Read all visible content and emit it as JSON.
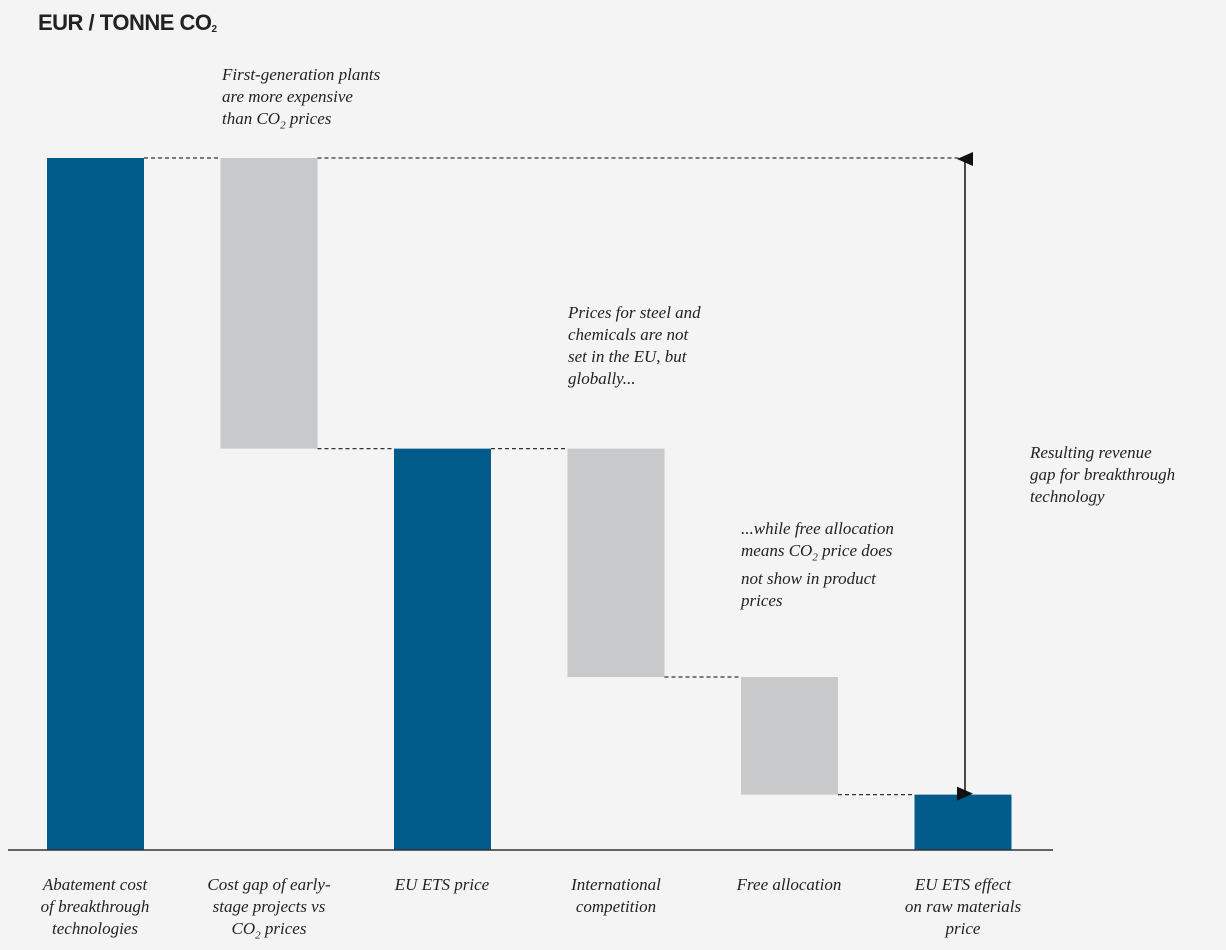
{
  "y_axis_label": "EUR / TONNE CO₂",
  "colors": {
    "primary": "#005b8a",
    "secondary": "#c8c9cb",
    "axis": "#333333",
    "connector": "#333333"
  },
  "chart_data": {
    "type": "bar",
    "subtype": "waterfall",
    "ylabel": "EUR / TONNE CO₂",
    "categories": [
      "Abatement cost of breakthrough technologies",
      "Cost gap of early-stage projects vs CO₂ prices",
      "EU ETS price",
      "International competition",
      "Free allocation",
      "EU ETS effect on raw materials price"
    ],
    "bars": [
      {
        "category": "Abatement cost of breakthrough technologies",
        "kind": "total",
        "low": 0,
        "high": 100,
        "color": "primary"
      },
      {
        "category": "Cost gap of early-stage projects vs CO₂ prices",
        "kind": "step",
        "low": 58,
        "high": 100,
        "color": "secondary"
      },
      {
        "category": "EU ETS price",
        "kind": "total",
        "low": 0,
        "high": 58,
        "color": "primary"
      },
      {
        "category": "International competition",
        "kind": "step",
        "low": 25,
        "high": 58,
        "color": "secondary"
      },
      {
        "category": "Free allocation",
        "kind": "step",
        "low": 8,
        "high": 25,
        "color": "secondary"
      },
      {
        "category": "EU ETS effect on raw materials price",
        "kind": "total",
        "low": 0,
        "high": 8,
        "color": "primary"
      }
    ],
    "ylim": [
      0,
      100
    ],
    "grid": false,
    "legend": "none",
    "gap_arrow": {
      "from": 8,
      "to": 100,
      "label": "Resulting revenue gap for breakthrough technology"
    },
    "annotations": [
      "First-generation plants are more expensive than CO₂ prices",
      "Prices for steel and chemicals are not set in the EU, but globally...",
      "...while free allocation means CO₂ price does not show in product prices",
      "Resulting revenue gap for breakthrough technology"
    ]
  }
}
